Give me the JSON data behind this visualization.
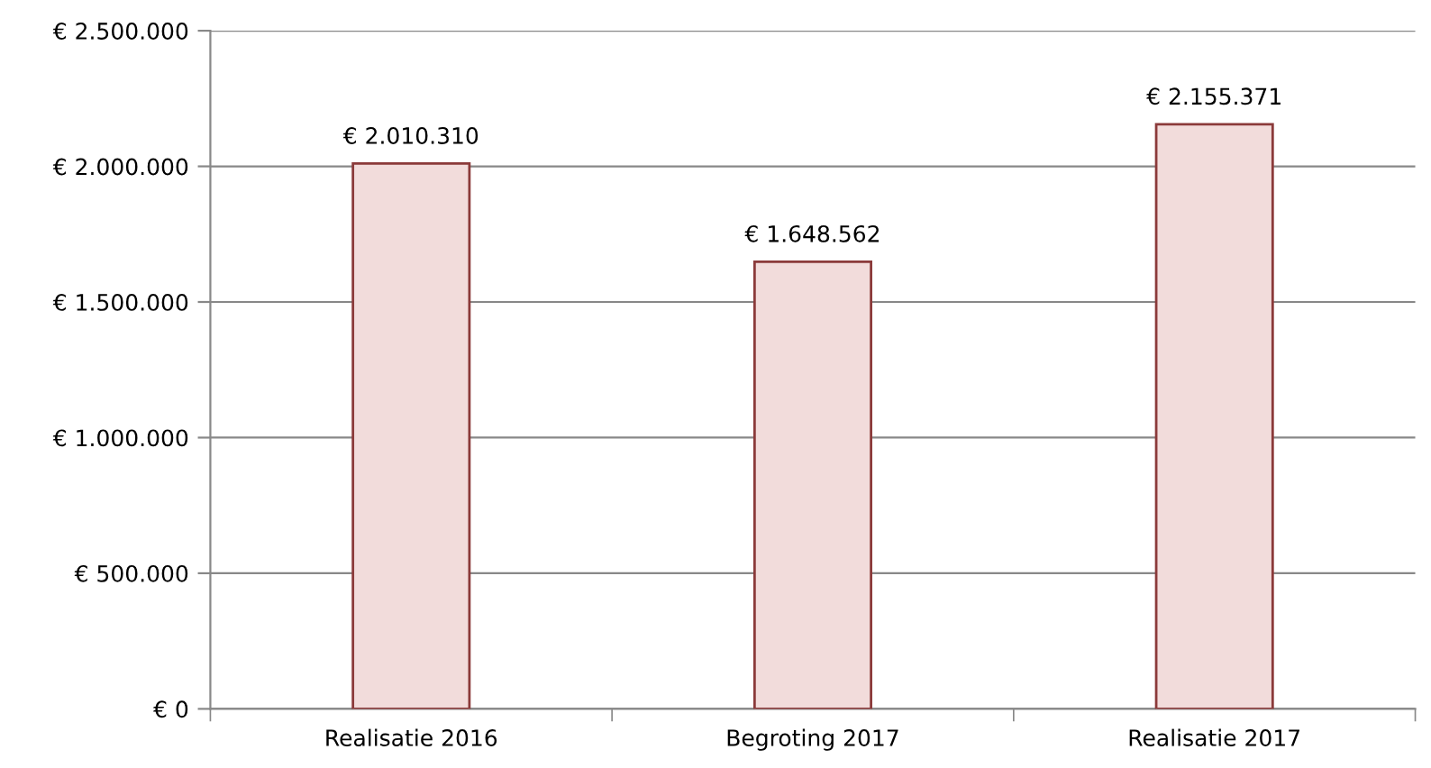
{
  "chart_data": {
    "type": "bar",
    "categories": [
      "Realisatie 2016",
      "Begroting 2017",
      "Realisatie 2017"
    ],
    "values": [
      2010310,
      1648562,
      2155371
    ],
    "value_labels": [
      "€ 2.010.310",
      "€ 1.648.562",
      "€ 2.155.371"
    ],
    "color": "#f2dcdb",
    "ylim": [
      0,
      2500000
    ],
    "yticks": [
      {
        "value": 0,
        "label": "€ 0"
      },
      {
        "value": 500000,
        "label": "€ 500.000"
      },
      {
        "value": 1000000,
        "label": "€ 1.000.000"
      },
      {
        "value": 1500000,
        "label": "€ 1.500.000"
      },
      {
        "value": 2000000,
        "label": "€ 2.000.000"
      },
      {
        "value": 2500000,
        "label": "€ 2.500.000"
      }
    ],
    "grid": "y"
  }
}
